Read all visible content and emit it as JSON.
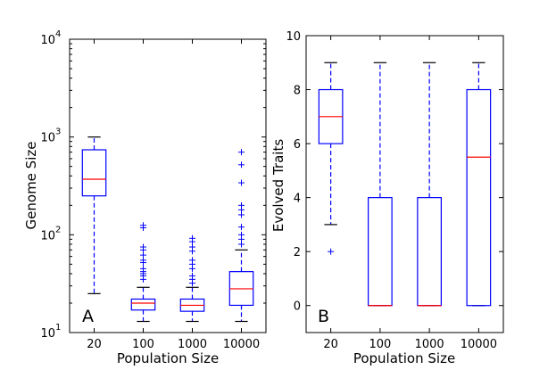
{
  "chart_data": [
    {
      "panel": "A",
      "type": "boxplot",
      "yscale": "log",
      "ylim": [
        10,
        10000
      ],
      "yticks": [
        {
          "value": 10,
          "base": "10",
          "exp": "1"
        },
        {
          "value": 100,
          "base": "10",
          "exp": "2"
        },
        {
          "value": 1000,
          "base": "10",
          "exp": "3"
        },
        {
          "value": 10000,
          "base": "10",
          "exp": "4"
        }
      ],
      "xlabel": "Population Size",
      "ylabel": "Genome Size",
      "categories": [
        "20",
        "100",
        "1000",
        "10000"
      ],
      "boxes": [
        {
          "whisker_low": 25,
          "q1": 250,
          "median": 370,
          "q3": 740,
          "whisker_high": 1000,
          "fliers": []
        },
        {
          "whisker_low": 13,
          "q1": 17,
          "median": 20,
          "q3": 22,
          "whisker_high": 29,
          "fliers": [
            35,
            38,
            40,
            42,
            45,
            52,
            55,
            62,
            70,
            75,
            118,
            125
          ]
        },
        {
          "whisker_low": 13,
          "q1": 16.5,
          "median": 19,
          "q3": 22,
          "whisker_high": 29,
          "fliers": [
            32,
            35,
            38,
            45,
            50,
            55,
            68,
            75,
            85,
            92
          ]
        },
        {
          "whisker_low": 13,
          "q1": 19,
          "median": 28,
          "q3": 42,
          "whisker_high": 70,
          "fliers": [
            80,
            90,
            100,
            120,
            160,
            180,
            200,
            340,
            520,
            700
          ]
        }
      ]
    },
    {
      "panel": "B",
      "type": "boxplot",
      "yscale": "linear",
      "ylim": [
        -1,
        10
      ],
      "yticks": [
        0,
        2,
        4,
        6,
        8,
        10
      ],
      "xlabel": "Population Size",
      "ylabel": "Evolved Traits",
      "categories": [
        "20",
        "100",
        "1000",
        "10000"
      ],
      "boxes": [
        {
          "whisker_low": 3,
          "q1": 6,
          "median": 7,
          "q3": 8,
          "whisker_high": 9,
          "fliers": [
            2
          ]
        },
        {
          "whisker_low": 0,
          "q1": 0,
          "median": 0,
          "q3": 4,
          "whisker_high": 9,
          "fliers": []
        },
        {
          "whisker_low": 0,
          "q1": 0,
          "median": 0,
          "q3": 4,
          "whisker_high": 9,
          "fliers": []
        },
        {
          "whisker_low": 0,
          "q1": 0,
          "median": 5.5,
          "q3": 8,
          "whisker_high": 9,
          "fliers": []
        }
      ]
    }
  ],
  "colors": {
    "box": "#0000ff",
    "median": "#ff0000",
    "cap": "#000000"
  }
}
